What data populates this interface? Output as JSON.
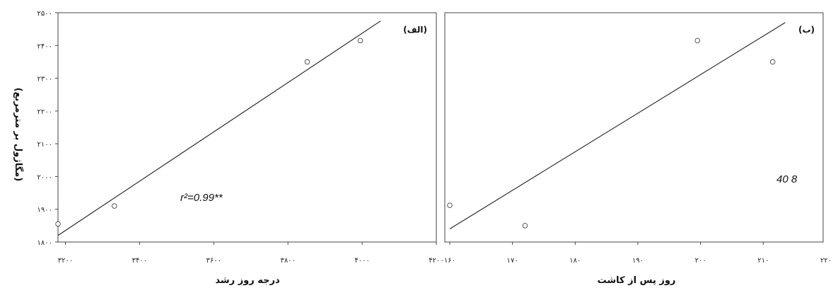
{
  "y_axis_label": "(مگاژول بر مترمربع)",
  "chart_data": [
    {
      "type": "scatter",
      "panel_label": "(الف)",
      "xlabel": "درجه روز رشد",
      "ylabel": "(مگاژول بر مترمربع)",
      "xlim": [
        3180,
        4200
      ],
      "ylim": [
        1800,
        2500
      ],
      "xticks": [
        3200,
        3400,
        3600,
        3800,
        4000,
        4200
      ],
      "xtick_labels": [
        "۳۲۰۰",
        "۳۴۰۰",
        "۳۶۰۰",
        "۳۸۰۰",
        "۴۰۰۰",
        "۴۲۰۰"
      ],
      "yticks": [
        1800,
        1900,
        2000,
        2100,
        2200,
        2300,
        2400,
        2500
      ],
      "ytick_labels": [
        "۱۸۰۰",
        "۱۹۰۰",
        "۲۰۰۰",
        "۲۱۰۰",
        "۲۲۰۰",
        "۲۳۰۰",
        "۲۴۰۰",
        "۲۵۰۰"
      ],
      "points": [
        {
          "x": 3180,
          "y": 1855
        },
        {
          "x": 3332,
          "y": 1910
        },
        {
          "x": 3852,
          "y": 2350
        },
        {
          "x": 3995,
          "y": 2415
        }
      ],
      "fit_line": [
        {
          "x": 3180,
          "y": 1820
        },
        {
          "x": 4050,
          "y": 2475
        }
      ],
      "annotation": "r²=0.99**",
      "grid": false
    },
    {
      "type": "scatter",
      "panel_label": "(ب)",
      "xlabel": "روز پس از کاشت",
      "xlim": [
        160,
        220
      ],
      "ylim": [
        1800,
        2500
      ],
      "xticks": [
        160,
        170,
        180,
        190,
        200,
        210,
        220
      ],
      "xtick_labels": [
        "۱۶۰",
        "۱۷۰",
        "۱۸۰",
        "۱۹۰",
        "۲۰۰",
        "۲۱۰",
        "۲۲۰"
      ],
      "points": [
        {
          "x": 160,
          "y": 1912
        },
        {
          "x": 172,
          "y": 1850
        },
        {
          "x": 199.5,
          "y": 2415
        },
        {
          "x": 211.5,
          "y": 2350
        }
      ],
      "fit_line": [
        {
          "x": 160,
          "y": 1840
        },
        {
          "x": 213.5,
          "y": 2470
        }
      ],
      "annotation": "40  8",
      "grid": false
    }
  ]
}
